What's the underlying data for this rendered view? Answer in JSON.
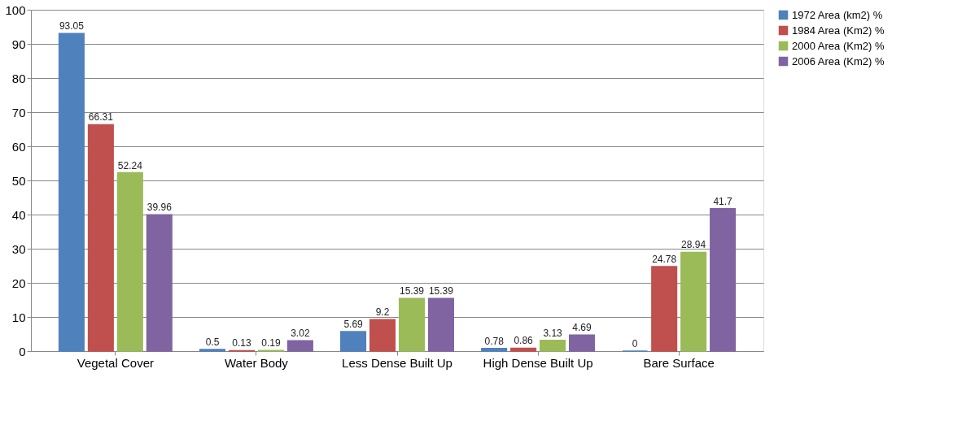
{
  "chart_data": {
    "type": "bar",
    "categories": [
      "Vegetal Cover",
      "Water Body",
      "Less Dense Built Up",
      "High Dense Built Up",
      "Bare Surface"
    ],
    "series": [
      {
        "name": "1972 Area (km2) %",
        "color": "#4f81bd",
        "values": [
          93.05,
          0.5,
          5.69,
          0.78,
          0
        ]
      },
      {
        "name": "1984 Area (Km2) %",
        "color": "#c0504d",
        "values": [
          66.31,
          0.13,
          9.2,
          0.86,
          24.78
        ]
      },
      {
        "name": "2000 Area (Km2) %",
        "color": "#9bbb59",
        "values": [
          52.24,
          0.19,
          15.39,
          3.13,
          28.94
        ]
      },
      {
        "name": "2006 Area (Km2) %",
        "color": "#8064a2",
        "values": [
          39.96,
          3.02,
          15.39,
          4.69,
          41.7
        ]
      }
    ],
    "ylim": [
      0,
      100
    ],
    "yticks": [
      0,
      10,
      20,
      30,
      40,
      50,
      60,
      70,
      80,
      90,
      100
    ],
    "grid": "y",
    "legend": "right",
    "data_labels": true
  }
}
